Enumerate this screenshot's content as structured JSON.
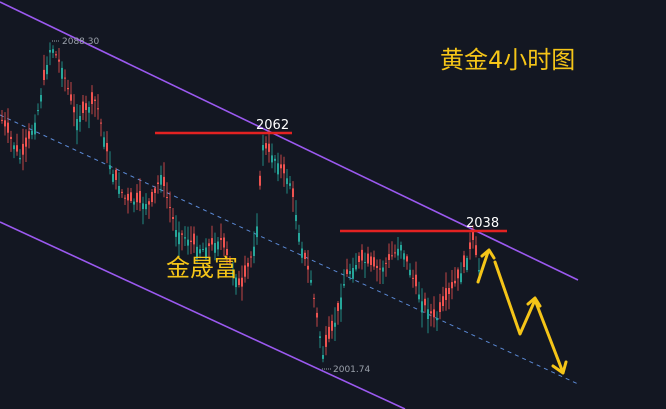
{
  "chart_title": "黄金4小时图",
  "brand": "金晟富",
  "colors": {
    "background": "#131722",
    "up": "#26a69a",
    "down": "#ef5350",
    "channel": "#9b59f0",
    "midline": "#5b8ad6",
    "resistance": "#e32222",
    "arrow": "#f5c518",
    "label": "#ffffff",
    "muted": "#9aa0aa"
  },
  "chart_data": {
    "type": "candlestick",
    "title": "黄金4小时图",
    "price_high_label": "2088.30",
    "price_low_label": "2001.74",
    "resistance_levels": [
      {
        "label": "2062",
        "value": 2062
      },
      {
        "label": "2038",
        "value": 2038
      }
    ],
    "annotations": [
      "descending channel",
      "projected path: up, then down"
    ],
    "grid": false
  }
}
